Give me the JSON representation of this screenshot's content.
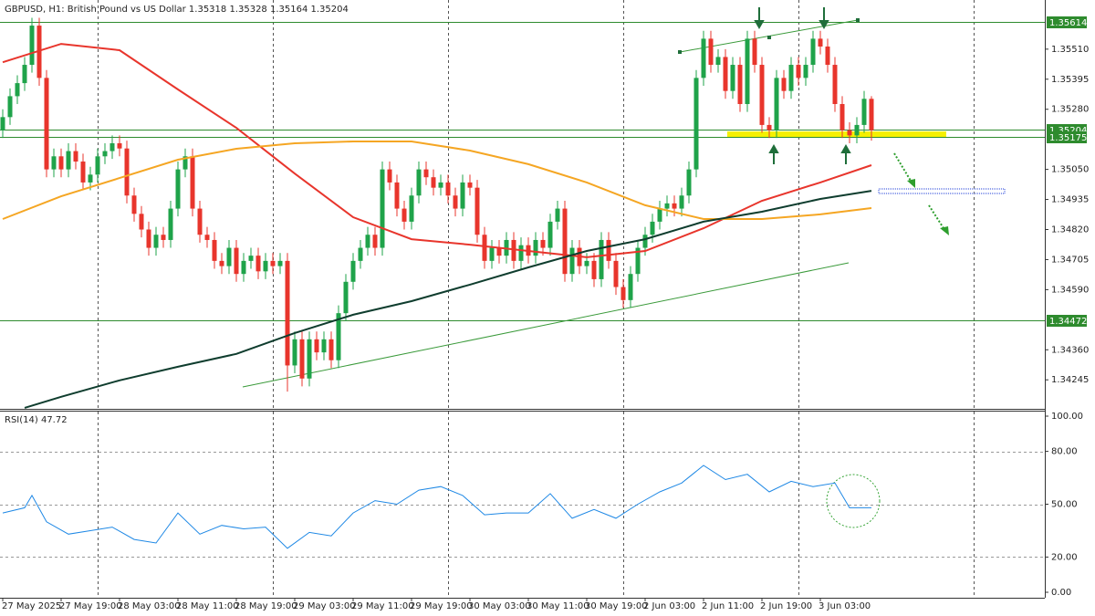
{
  "chart_data": [
    {
      "type": "candlestick",
      "title": "GBPUSD, H1:  British Pound vs US Dollar  1.35318 1.35328 1.35164 1.35204",
      "up_color": "#1fa34a",
      "down_color": "#e8352c",
      "open": [
        1.352,
        1.3525,
        1.3533,
        1.3538,
        1.3545,
        1.356,
        1.354,
        1.3505,
        1.351,
        1.3505,
        1.3512,
        1.3508,
        1.35,
        1.3503,
        1.351,
        1.3512,
        1.3515,
        1.3513,
        1.3495,
        1.3488,
        1.3482,
        1.3475,
        1.348,
        1.3478,
        1.349,
        1.3505,
        1.351,
        1.349,
        1.348,
        1.3478,
        1.347,
        1.3468,
        1.3475,
        1.3465,
        1.347,
        1.3472,
        1.3466,
        1.347,
        1.3468,
        1.347,
        1.343,
        1.344,
        1.3425,
        1.344,
        1.3435,
        1.344,
        1.3432,
        1.345,
        1.3462,
        1.347,
        1.3475,
        1.348,
        1.3475,
        1.3505,
        1.35,
        1.349,
        1.3485,
        1.3495,
        1.3505,
        1.3502,
        1.3498,
        1.35,
        1.3495,
        1.349,
        1.35,
        1.3498,
        1.348,
        1.347,
        1.3475,
        1.3472,
        1.3478,
        1.347,
        1.3476,
        1.3472,
        1.3478,
        1.3475,
        1.3485,
        1.349,
        1.3465,
        1.3475,
        1.3468,
        1.347,
        1.3463,
        1.3478,
        1.347,
        1.346,
        1.3455,
        1.3465,
        1.3475,
        1.348,
        1.3485,
        1.349,
        1.3492,
        1.349,
        1.3495,
        1.3505,
        1.354,
        1.3555,
        1.3545,
        1.3548,
        1.3535,
        1.3545,
        1.353,
        1.3555,
        1.3545,
        1.3522,
        1.352,
        1.354,
        1.3535,
        1.3545,
        1.354,
        1.3545,
        1.3555,
        1.3552,
        1.3545,
        1.353,
        1.352,
        1.3518,
        1.3522,
        1.3532
      ],
      "high": [
        1.3528,
        1.3536,
        1.3541,
        1.3548,
        1.3563,
        1.3563,
        1.3543,
        1.3513,
        1.3513,
        1.3515,
        1.3515,
        1.3511,
        1.3506,
        1.3513,
        1.3515,
        1.3518,
        1.3518,
        1.3516,
        1.3498,
        1.3491,
        1.3485,
        1.3483,
        1.3483,
        1.3493,
        1.3508,
        1.3513,
        1.3513,
        1.3493,
        1.3483,
        1.3481,
        1.3473,
        1.3478,
        1.3478,
        1.3473,
        1.3475,
        1.3475,
        1.3473,
        1.3473,
        1.3473,
        1.3473,
        1.3443,
        1.3443,
        1.3443,
        1.3443,
        1.3443,
        1.3443,
        1.3453,
        1.3465,
        1.3473,
        1.3478,
        1.3483,
        1.3483,
        1.3508,
        1.3508,
        1.3503,
        1.3493,
        1.3498,
        1.3508,
        1.3508,
        1.3505,
        1.3503,
        1.3503,
        1.3498,
        1.3503,
        1.3503,
        1.3501,
        1.3483,
        1.3478,
        1.3478,
        1.3481,
        1.3481,
        1.3479,
        1.3479,
        1.3481,
        1.3481,
        1.3488,
        1.3493,
        1.3493,
        1.3478,
        1.3478,
        1.3473,
        1.3473,
        1.3481,
        1.3481,
        1.3473,
        1.3463,
        1.3468,
        1.3478,
        1.3483,
        1.3488,
        1.3493,
        1.3495,
        1.3495,
        1.3498,
        1.3508,
        1.3543,
        1.3558,
        1.3558,
        1.3551,
        1.3551,
        1.3548,
        1.3548,
        1.3558,
        1.3558,
        1.3548,
        1.3525,
        1.3543,
        1.3543,
        1.3548,
        1.3548,
        1.3548,
        1.3558,
        1.3558,
        1.3555,
        1.3548,
        1.3533,
        1.3523,
        1.3525,
        1.3535,
        1.3533
      ],
      "low": [
        1.3517,
        1.3522,
        1.353,
        1.3535,
        1.3542,
        1.3537,
        1.3502,
        1.3502,
        1.3502,
        1.3502,
        1.3505,
        1.3497,
        1.3497,
        1.35,
        1.3507,
        1.3509,
        1.351,
        1.3492,
        1.3485,
        1.3479,
        1.3472,
        1.3472,
        1.3475,
        1.3475,
        1.3487,
        1.3502,
        1.3487,
        1.3477,
        1.3475,
        1.3467,
        1.3465,
        1.3465,
        1.3462,
        1.3462,
        1.3467,
        1.3463,
        1.3463,
        1.3465,
        1.3465,
        1.342,
        1.3427,
        1.3422,
        1.3422,
        1.3432,
        1.3432,
        1.3429,
        1.3429,
        1.3447,
        1.3459,
        1.3467,
        1.3472,
        1.3472,
        1.3472,
        1.3497,
        1.3487,
        1.3482,
        1.3482,
        1.3492,
        1.3499,
        1.3495,
        1.3495,
        1.3492,
        1.3487,
        1.3487,
        1.3495,
        1.3477,
        1.3467,
        1.3467,
        1.3469,
        1.3469,
        1.3467,
        1.3467,
        1.3469,
        1.3469,
        1.3472,
        1.3472,
        1.3482,
        1.3462,
        1.3462,
        1.3465,
        1.3465,
        1.346,
        1.346,
        1.3467,
        1.3457,
        1.3452,
        1.3452,
        1.3462,
        1.3472,
        1.3477,
        1.3482,
        1.3487,
        1.3487,
        1.3487,
        1.3492,
        1.3502,
        1.3537,
        1.3542,
        1.3542,
        1.3532,
        1.3532,
        1.3527,
        1.3527,
        1.3542,
        1.3519,
        1.3517,
        1.3517,
        1.3532,
        1.3532,
        1.3537,
        1.3537,
        1.3542,
        1.3549,
        1.3542,
        1.3527,
        1.3517,
        1.3515,
        1.3515,
        1.3519,
        1.3516
      ],
      "close": [
        1.3525,
        1.3533,
        1.3538,
        1.3545,
        1.356,
        1.354,
        1.3505,
        1.351,
        1.3505,
        1.3512,
        1.3508,
        1.35,
        1.3503,
        1.351,
        1.3512,
        1.3515,
        1.3513,
        1.3495,
        1.3488,
        1.3482,
        1.3475,
        1.348,
        1.3478,
        1.349,
        1.3505,
        1.351,
        1.349,
        1.348,
        1.3478,
        1.347,
        1.3468,
        1.3475,
        1.3465,
        1.347,
        1.3472,
        1.3466,
        1.347,
        1.3468,
        1.347,
        1.343,
        1.344,
        1.3425,
        1.344,
        1.3435,
        1.344,
        1.3432,
        1.345,
        1.3462,
        1.347,
        1.3475,
        1.348,
        1.3475,
        1.3505,
        1.35,
        1.349,
        1.3485,
        1.3495,
        1.3505,
        1.3502,
        1.3498,
        1.35,
        1.3495,
        1.349,
        1.35,
        1.3498,
        1.348,
        1.347,
        1.3475,
        1.3472,
        1.3478,
        1.347,
        1.3476,
        1.3472,
        1.3478,
        1.3475,
        1.3485,
        1.349,
        1.3465,
        1.3475,
        1.3468,
        1.347,
        1.3463,
        1.3478,
        1.347,
        1.346,
        1.3455,
        1.3465,
        1.3475,
        1.348,
        1.3485,
        1.349,
        1.3492,
        1.349,
        1.3495,
        1.3505,
        1.354,
        1.3555,
        1.3545,
        1.3548,
        1.3535,
        1.3545,
        1.353,
        1.3555,
        1.3545,
        1.3522,
        1.352,
        1.354,
        1.3535,
        1.3545,
        1.354,
        1.3545,
        1.3555,
        1.3552,
        1.3545,
        1.353,
        1.352,
        1.3518,
        1.3522,
        1.3532,
        1.352
      ],
      "series": [
        {
          "color": "#e8352c",
          "x": [
            0,
            8,
            16,
            24,
            32,
            40,
            48,
            56,
            64,
            72,
            80,
            88,
            96,
            104,
            112,
            119
          ],
          "values": [
            1.3546,
            1.3553,
            1.35506,
            1.35356,
            1.35209,
            1.35034,
            1.34867,
            1.34783,
            1.34762,
            1.34738,
            1.34714,
            1.34738,
            1.34825,
            1.3493,
            1.35,
            1.35066
          ]
        },
        {
          "color": "#f5a623",
          "x": [
            0,
            8,
            16,
            24,
            32,
            40,
            48,
            56,
            64,
            72,
            80,
            88,
            96,
            104,
            112,
            119
          ],
          "values": [
            1.3486,
            1.34947,
            1.35017,
            1.35087,
            1.35129,
            1.3515,
            1.35157,
            1.35157,
            1.35122,
            1.3507,
            1.35,
            1.34913,
            1.3486,
            1.3486,
            1.34878,
            1.34902
          ]
        },
        {
          "color": "#0f3d2e",
          "x": [
            3,
            8,
            16,
            24,
            32,
            40,
            48,
            56,
            64,
            72,
            80,
            88,
            96,
            104,
            112,
            119
          ],
          "values": [
            1.34138,
            1.3418,
            1.34243,
            1.34295,
            1.34344,
            1.34424,
            1.34494,
            1.34546,
            1.34609,
            1.34675,
            1.34738,
            1.34783,
            1.3485,
            1.34888,
            1.34937,
            1.34968
          ]
        }
      ],
      "levels": [
        1.35614,
        1.35204,
        1.35175,
        1.34472
      ],
      "level_color": "#2e8b2e",
      "xlim": [
        -0.375,
        142.75
      ],
      "ylim": [
        1.34134,
        1.35698
      ],
      "yticks": [
        {
          "value": 1.3551,
          "label": "1.35510"
        },
        1.35395,
        {
          "value": 1.3528,
          "label": "1.35280"
        },
        {
          "value": 1.3505,
          "label": "1.35050"
        },
        1.34935,
        {
          "value": 1.3482,
          "label": "1.34820"
        },
        1.34705,
        {
          "value": 1.3459,
          "label": "1.34590"
        },
        {
          "value": 1.3436,
          "label": "1.34360"
        },
        1.34245
      ],
      "xticks": [
        {
          "value": 0,
          "label": "27 May 2025"
        },
        {
          "value": 8,
          "label": "27 May 19:00"
        },
        {
          "value": 16,
          "label": "28 May 03:00"
        },
        {
          "value": 24,
          "label": "28 May 11:00"
        },
        {
          "value": 32,
          "label": "28 May 19:00"
        },
        {
          "value": 40,
          "label": "29 May 03:00"
        },
        {
          "value": 48,
          "label": "29 May 11:00"
        },
        {
          "value": 56,
          "label": "29 May 19:00"
        },
        {
          "value": 64,
          "label": "30 May 03:00"
        },
        {
          "value": 72,
          "label": "30 May 11:00"
        },
        {
          "value": 80,
          "label": "30 May 19:00"
        },
        {
          "value": 88,
          "label": "2 Jun 03:00"
        },
        {
          "value": 96,
          "label": "2 Jun 11:00"
        },
        {
          "value": 104,
          "label": "2 Jun 19:00"
        },
        {
          "value": 112,
          "label": "3 Jun 03:00"
        }
      ],
      "xgrid": [
        13,
        37,
        61,
        85,
        109,
        133
      ]
    },
    {
      "type": "line",
      "title": "RSI(14) 47.72",
      "color": "#1e88e5",
      "x": [
        0,
        3,
        4,
        6,
        9,
        12,
        15,
        18,
        21,
        24,
        27,
        30,
        33,
        36,
        39,
        42,
        45,
        48,
        51,
        54,
        57,
        60,
        63,
        66,
        69,
        72,
        75,
        78,
        81,
        84,
        87,
        90,
        93,
        96,
        99,
        102,
        105,
        108,
        111,
        114,
        116,
        119
      ],
      "values": [
        45,
        48,
        55,
        40,
        33,
        35,
        37,
        30,
        28,
        45,
        33,
        38,
        36,
        37,
        25,
        34,
        32,
        45,
        52,
        50,
        58,
        60,
        55,
        44,
        45,
        45,
        56,
        42,
        47,
        42,
        50,
        57,
        62,
        72,
        64,
        67,
        57,
        63,
        60,
        62,
        48,
        48
      ],
      "xlim": [
        -0.375,
        142.75
      ],
      "ylim": [
        0,
        100
      ],
      "yticks": [
        {
          "value": 100,
          "label": "100.00"
        },
        {
          "value": 80,
          "label": "80.00"
        },
        {
          "value": 50,
          "label": "50.00"
        },
        {
          "value": 20,
          "label": "20.00"
        },
        {
          "value": 0,
          "label": "0.00"
        }
      ],
      "grid": [
        {
          "value": 80,
          "label": "80.00"
        },
        {
          "value": 50,
          "label": "50.00"
        },
        {
          "value": 20,
          "label": "20.00"
        }
      ],
      "xgrid": [
        13,
        37,
        61,
        85,
        109,
        133
      ]
    }
  ]
}
